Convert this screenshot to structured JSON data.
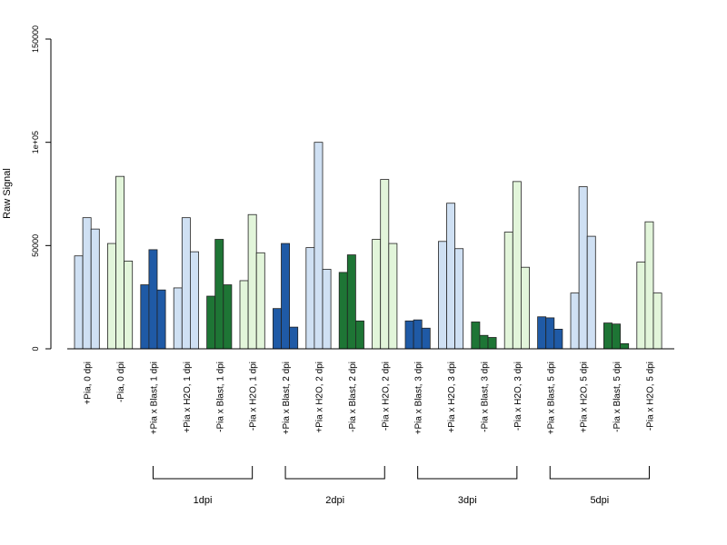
{
  "chart_data": {
    "type": "bar",
    "ylabel": "Raw Signal",
    "ylim": [
      0,
      150000
    ],
    "yticks": [
      {
        "value": 0,
        "label": "0"
      },
      {
        "value": 50000,
        "label": "50000"
      },
      {
        "value": 100000,
        "label": "1e+05"
      },
      {
        "value": 150000,
        "label": "150000"
      }
    ],
    "categories": [
      "+Pia, 0 dpi",
      "-Pia, 0 dpi",
      "+Pia x Blast, 1 dpi",
      "+Pia x H2O, 1 dpi",
      "-Pia x Blast, 1 dpi",
      "-Pia x H2O, 1 dpi",
      "+Pia x Blast, 2 dpi",
      "+Pia x H2O, 2 dpi",
      "-Pia x Blast, 2 dpi",
      "-Pia x H2O, 2 dpi",
      "+Pia x Blast, 3 dpi",
      "+Pia x H2O, 3 dpi",
      "-Pia x Blast, 3 dpi",
      "-Pia x H2O, 3 dpi",
      "+Pia x Blast, 5 dpi",
      "+Pia x H2O, 5 dpi",
      "-Pia x Blast, 5 dpi",
      "-Pia x H2O, 5 dpi"
    ],
    "colors": [
      "#cfe0f3",
      "#e2f5da",
      "#1f5aa6",
      "#cfe0f3",
      "#1e7535",
      "#e2f5da",
      "#1f5aa6",
      "#cfe0f3",
      "#1e7535",
      "#e2f5da",
      "#1f5aa6",
      "#cfe0f3",
      "#1e7535",
      "#e2f5da",
      "#1f5aa6",
      "#cfe0f3",
      "#1e7535",
      "#e2f5da"
    ],
    "replicates": [
      [
        45000,
        63500,
        58000
      ],
      [
        51000,
        83500,
        42500
      ],
      [
        31000,
        48000,
        28500
      ],
      [
        29500,
        63500,
        47000
      ],
      [
        25500,
        53000,
        31000
      ],
      [
        33000,
        65000,
        46500
      ],
      [
        19500,
        51000,
        10500
      ],
      [
        49000,
        100000,
        38500
      ],
      [
        37000,
        45500,
        13500
      ],
      [
        53000,
        82000,
        51000
      ],
      [
        13500,
        14000,
        10000
      ],
      [
        52000,
        70500,
        48500
      ],
      [
        13000,
        6500,
        5500
      ],
      [
        56500,
        81000,
        39500
      ],
      [
        15500,
        15000,
        9500
      ],
      [
        27000,
        78500,
        54500
      ],
      [
        12500,
        12000,
        2500
      ],
      [
        42000,
        61500,
        27000
      ]
    ],
    "groups": [
      {
        "label": "1dpi",
        "from": 2,
        "to": 5
      },
      {
        "label": "2dpi",
        "from": 6,
        "to": 9
      },
      {
        "label": "3dpi",
        "from": 10,
        "to": 13
      },
      {
        "label": "5dpi",
        "from": 14,
        "to": 17
      }
    ]
  }
}
